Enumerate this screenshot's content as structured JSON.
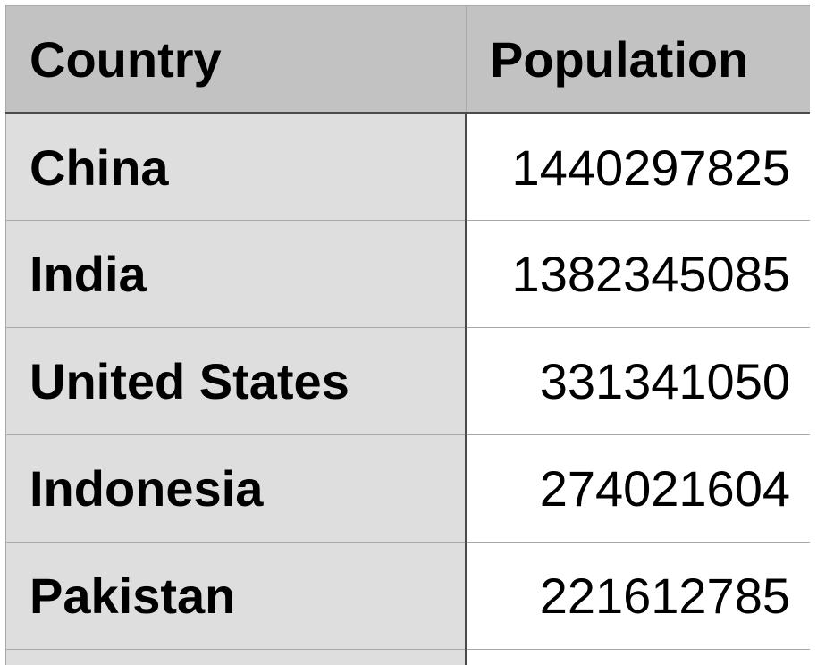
{
  "table": {
    "headers": {
      "country": "Country",
      "population": "Population"
    },
    "rows": [
      {
        "country": "China",
        "population": "1440297825"
      },
      {
        "country": "India",
        "population": "1382345085"
      },
      {
        "country": "United States",
        "population": "331341050"
      },
      {
        "country": "Indonesia",
        "population": "274021604"
      },
      {
        "country": "Pakistan",
        "population": "221612785"
      }
    ]
  }
}
